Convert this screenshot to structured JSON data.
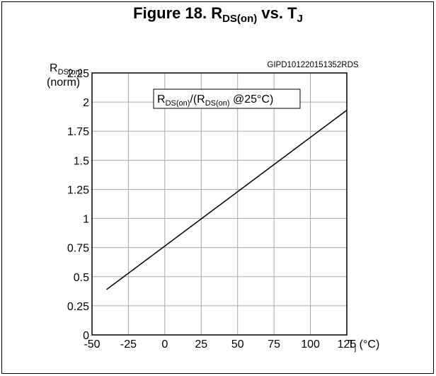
{
  "figure": {
    "title_prefix": "Figure 18. R",
    "title_sub1": "DS(on)",
    "title_mid": " vs. T",
    "title_sub2": "J"
  },
  "chart_data": {
    "type": "line",
    "code": "GIPD101220151352RDS",
    "ylabel": {
      "main": "R",
      "sub": "DS(on)",
      "unit": "(norm)"
    },
    "xlabel": {
      "main": "T",
      "sub": "j",
      "unit": " (°C)"
    },
    "legend": {
      "p1": "R",
      "s1": "DS(on)",
      "p2": "/(R",
      "s2": "DS(on)",
      "p3": " @25°C)"
    },
    "xlim": [
      -50,
      125
    ],
    "ylim": [
      0,
      2.25
    ],
    "x_ticks": [
      "-50",
      "-25",
      "0",
      "25",
      "50",
      "75",
      "100",
      "125"
    ],
    "y_ticks": [
      "0",
      "0.25",
      "0.5",
      "0.75",
      "1",
      "1.25",
      "1.5",
      "1.75",
      "2",
      "2.25"
    ],
    "grid": true,
    "series": [
      {
        "x": [
          -40,
          125
        ],
        "y": [
          0.39,
          1.93
        ]
      }
    ]
  }
}
